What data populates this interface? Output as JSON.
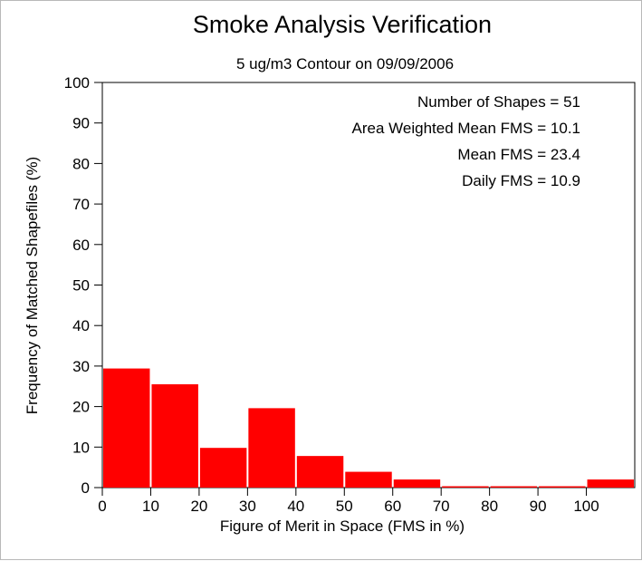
{
  "chart_data": {
    "type": "bar",
    "title": "Smoke Analysis Verification",
    "subtitle": "5 ug/m3 Contour on 09/09/2006",
    "xlabel": "Figure of Merit in Space (FMS in %)",
    "ylabel": "Frequency of Matched Shapefiles (%)",
    "xlim": [
      0,
      110
    ],
    "ylim": [
      0,
      100
    ],
    "x_ticks": [
      "0",
      "10",
      "20",
      "30",
      "40",
      "50",
      "60",
      "70",
      "80",
      "90",
      "100"
    ],
    "y_ticks": [
      "0",
      "10",
      "20",
      "30",
      "40",
      "50",
      "60",
      "70",
      "80",
      "90",
      "100"
    ],
    "bins": [
      {
        "from": 0,
        "to": 10,
        "value": 29.4
      },
      {
        "from": 10,
        "to": 20,
        "value": 25.5
      },
      {
        "from": 20,
        "to": 30,
        "value": 9.8
      },
      {
        "from": 30,
        "to": 40,
        "value": 19.6
      },
      {
        "from": 40,
        "to": 50,
        "value": 7.8
      },
      {
        "from": 50,
        "to": 60,
        "value": 3.9
      },
      {
        "from": 60,
        "to": 70,
        "value": 2.0
      },
      {
        "from": 70,
        "to": 80,
        "value": 0
      },
      {
        "from": 80,
        "to": 90,
        "value": 0
      },
      {
        "from": 90,
        "to": 100,
        "value": 0
      },
      {
        "from": 100,
        "to": 110,
        "value": 2.0
      }
    ],
    "bar_color": "#ff0000",
    "grid": false,
    "stats": [
      "Number of Shapes = 51",
      "Area Weighted Mean FMS = 10.1",
      "Mean FMS = 23.4",
      "Daily FMS = 10.9"
    ]
  }
}
